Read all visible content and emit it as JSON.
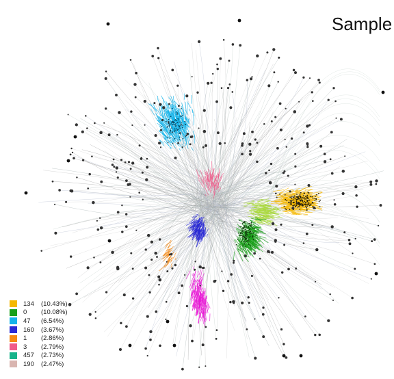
{
  "title": "Sample",
  "legend": [
    {
      "id": "134",
      "pct": "(10.43%)",
      "color": "#f5b800"
    },
    {
      "id": "0",
      "pct": "(10.08%)",
      "color": "#1aa01a"
    },
    {
      "id": "47",
      "pct": "(6.54%)",
      "color": "#15b4ea"
    },
    {
      "id": "160",
      "pct": "(3.67%)",
      "color": "#2a2ad4"
    },
    {
      "id": "1",
      "pct": "(2.86%)",
      "color": "#f58a14"
    },
    {
      "id": "3",
      "pct": "(2.79%)",
      "color": "#f05a8a"
    },
    {
      "id": "457",
      "pct": "(2.73%)",
      "color": "#17b38a"
    },
    {
      "id": "190",
      "pct": "(2.47%)",
      "color": "#d9b5b0"
    }
  ],
  "clusters": [
    {
      "id": "47",
      "color": "#15b4ea"
    },
    {
      "id": "134",
      "color": "#f5b800"
    },
    {
      "id": "0",
      "color": "#1aa01a"
    },
    {
      "id": "160",
      "color": "#2a2ad4"
    },
    {
      "id": "magenta",
      "color": "#e81ad6"
    },
    {
      "id": "3",
      "color": "#f05a8a"
    },
    {
      "id": "1",
      "color": "#f58a14"
    },
    {
      "id": "lime",
      "color": "#a8d83a"
    }
  ]
}
